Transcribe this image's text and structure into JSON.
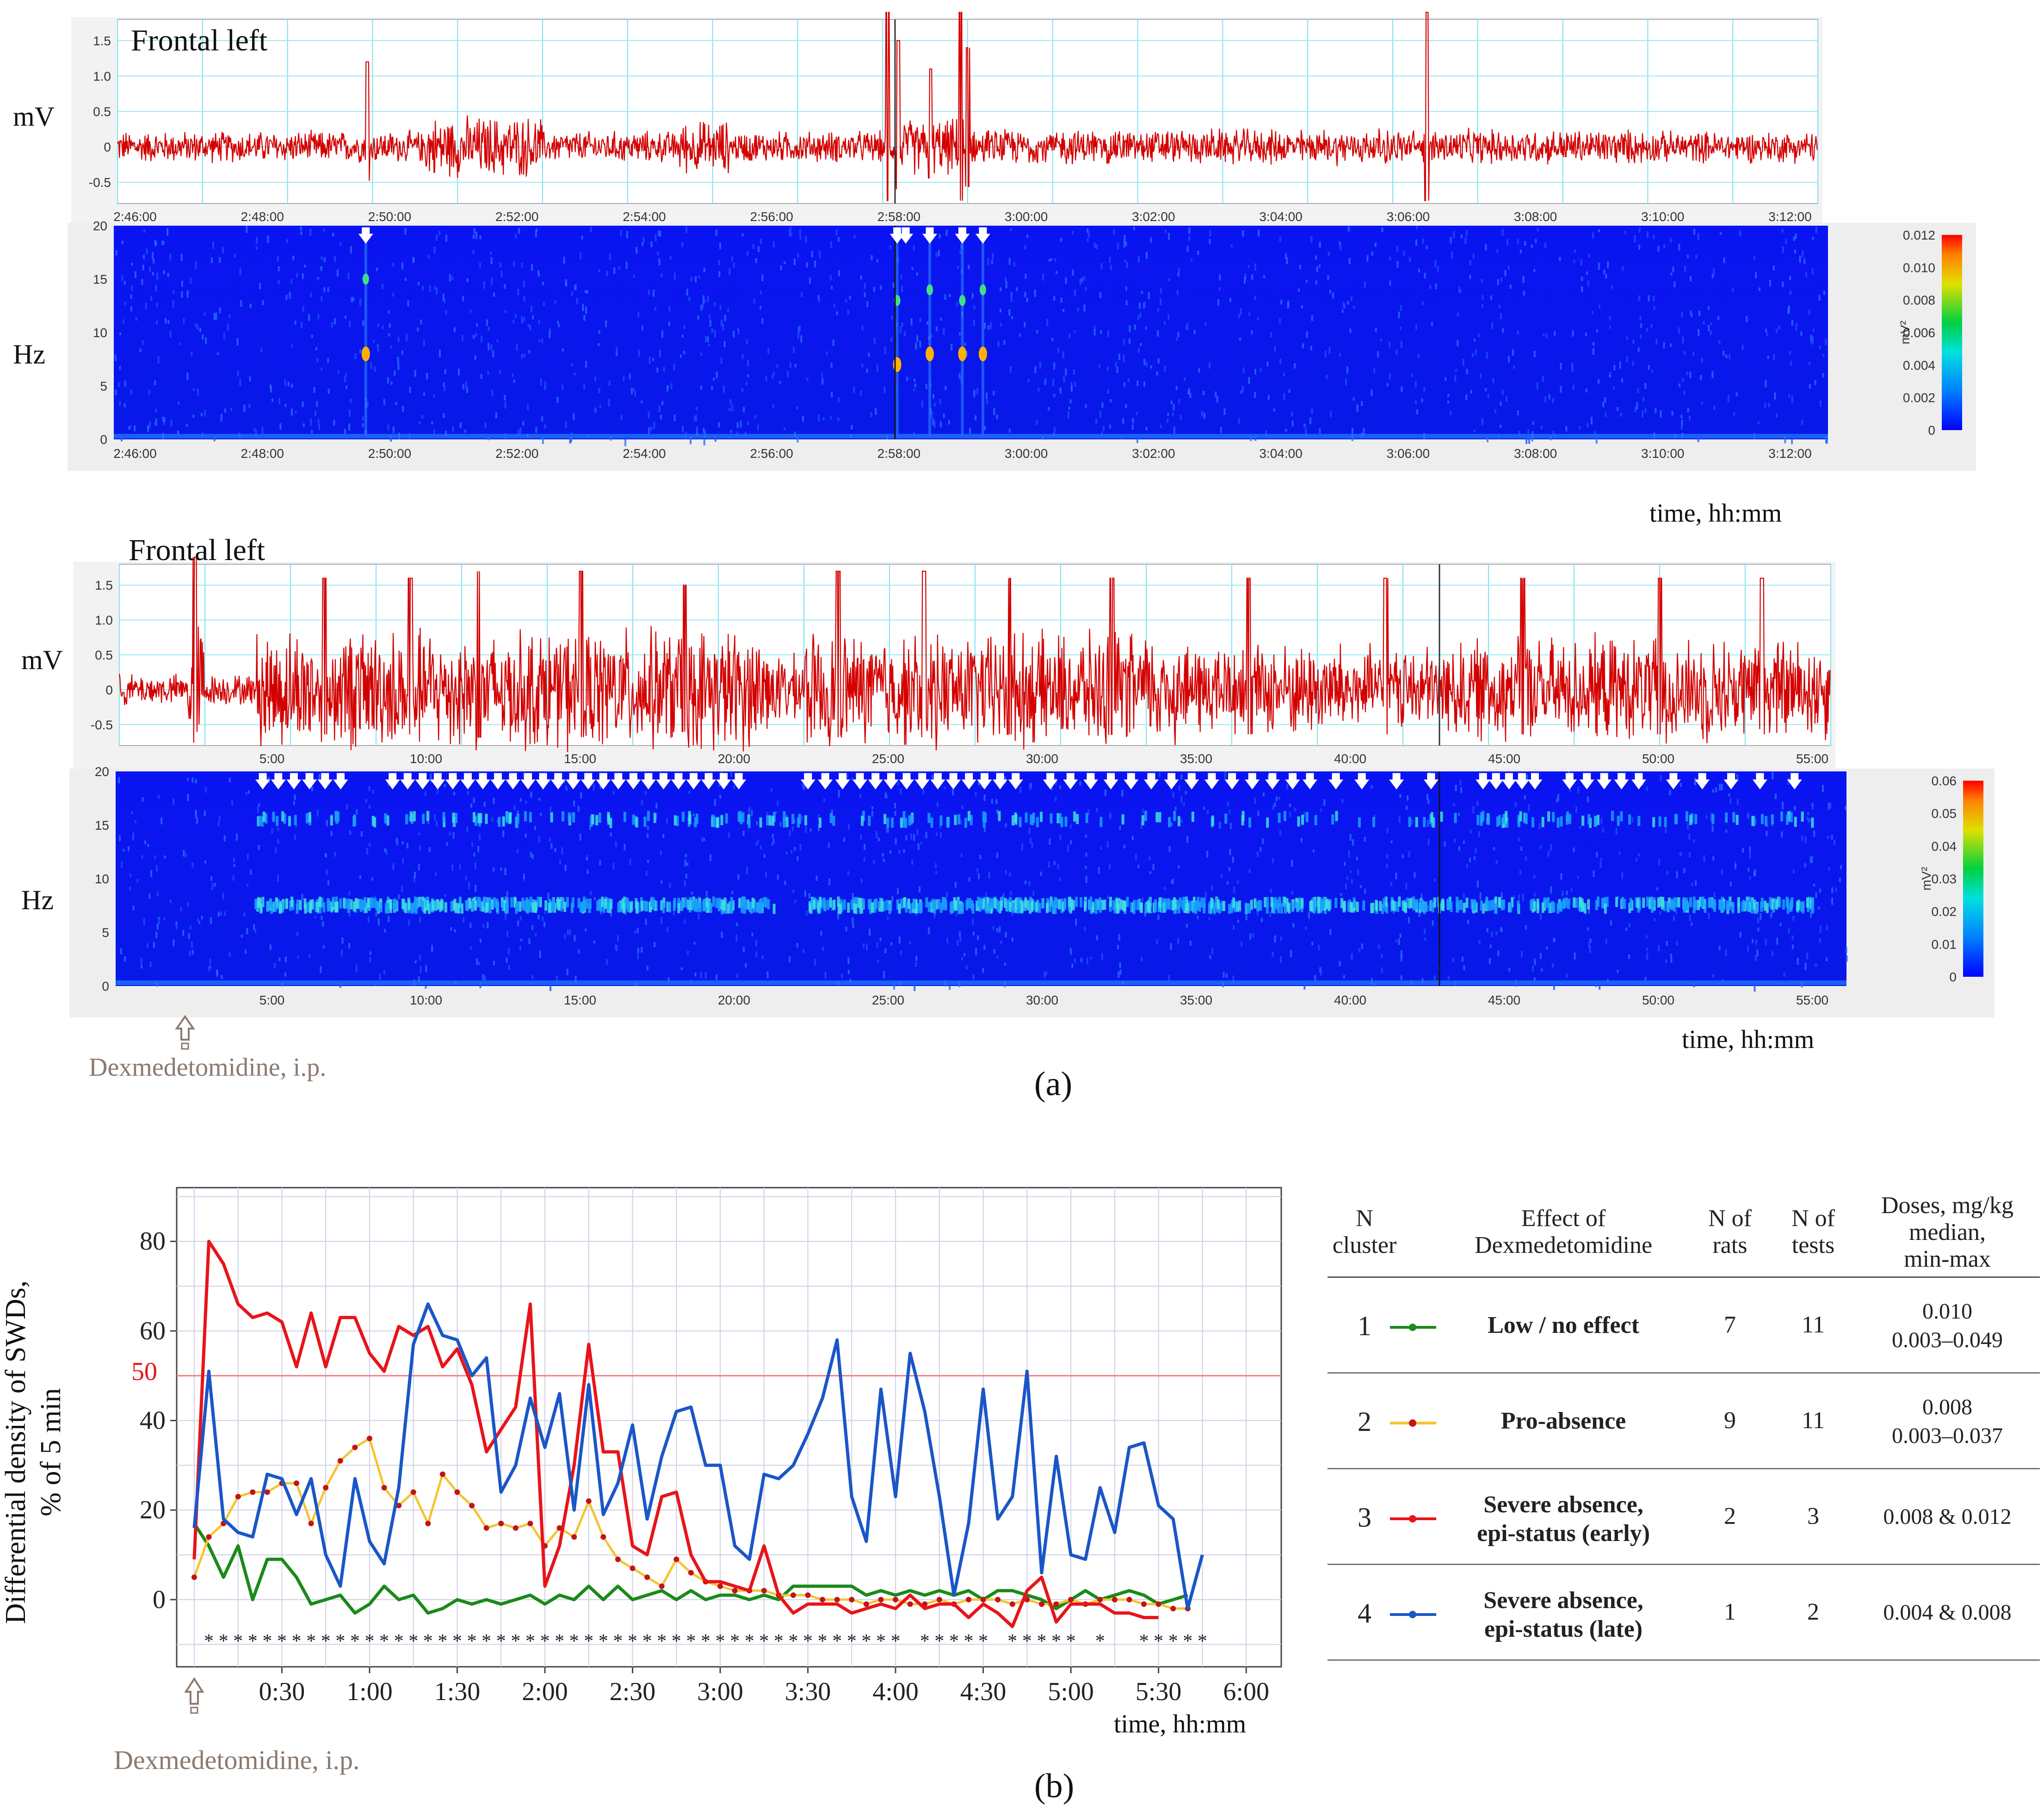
{
  "panel_a": {
    "label": "(a)",
    "top": {
      "trace_title": "Frontal left",
      "mv_label": "mV",
      "hz_label": "Hz",
      "mv_ticks": [
        "1.5",
        "1.0",
        "0.5",
        "0",
        "-0.5"
      ],
      "hz_ticks": [
        "20",
        "15",
        "10",
        "5",
        "0"
      ],
      "time_ticks": [
        "2:46:00",
        "2:48:00",
        "2:50:00",
        "2:52:00",
        "2:54:00",
        "2:56:00",
        "2:58:00",
        "3:00:00",
        "3:02:00",
        "3:04:00",
        "3:06:00",
        "3:08:00",
        "3:10:00",
        "3:12:00"
      ],
      "colorbar_ticks": [
        "0.012",
        "0.010",
        "0.008",
        "0.006",
        "0.004",
        "0.002",
        "0"
      ],
      "colorbar_unit": "mV²",
      "time_axis_label": "time, hh:mm"
    },
    "bottom": {
      "trace_title": "Frontal left",
      "mv_label": "mV",
      "hz_label": "Hz",
      "mv_ticks": [
        "1.5",
        "1.0",
        "0.5",
        "0",
        "-0.5"
      ],
      "hz_ticks": [
        "20",
        "15",
        "10",
        "5",
        "0"
      ],
      "time_ticks": [
        "5:00",
        "10:00",
        "15:00",
        "20:00",
        "25:00",
        "30:00",
        "35:00",
        "40:00",
        "45:00",
        "50:00",
        "55:00"
      ],
      "colorbar_ticks": [
        "0.06",
        "0.05",
        "0.04",
        "0.03",
        "0.02",
        "0.01",
        "0"
      ],
      "colorbar_unit": "mV²",
      "time_axis_label": "time, hh:mm",
      "injection_label": "Dexmedetomidine, i.p."
    }
  },
  "panel_b": {
    "label": "(b)",
    "injection_label": "Dexmedetomidine, i.p.",
    "ylabel_line1": "Differential density of SWDs,",
    "ylabel_line2": "% of 5 min",
    "xlabel": "time, hh:mm",
    "threshold_label": "50",
    "table": {
      "headers": [
        "N\ncluster",
        "Effect of\nDexmedetomidine",
        "N of\nrats",
        "N of\ntests",
        "Doses, mg/kg\nmedian,\nmin-max"
      ],
      "rows": [
        {
          "n": "1",
          "effect": "Low / no effect",
          "rats": "7",
          "tests": "11",
          "doses": "0.010\n0.003–0.049",
          "color": "#1a8a1a"
        },
        {
          "n": "2",
          "effect": "Pro-absence",
          "rats": "9",
          "tests": "11",
          "doses": "0.008\n0.003–0.037",
          "color": "#f4c430"
        },
        {
          "n": "3",
          "effect": "Severe absence,\nepi-status (early)",
          "rats": "2",
          "tests": "3",
          "doses": "0.008 & 0.012",
          "color": "#e8141a"
        },
        {
          "n": "4",
          "effect": "Severe absence,\nepi-status (late)",
          "rats": "1",
          "tests": "2",
          "doses": "0.004 & 0.008",
          "color": "#1a56c8"
        }
      ]
    }
  },
  "chart_data": [
    {
      "type": "line",
      "title": "Frontal left",
      "ylabel": "mV",
      "ylim": [
        -0.8,
        1.8
      ],
      "x_tick_labels": [
        "2:46:00",
        "2:48:00",
        "2:50:00",
        "2:52:00",
        "2:54:00",
        "2:56:00",
        "2:58:00",
        "3:00:00",
        "3:02:00",
        "3:04:00",
        "3:06:00",
        "3:08:00",
        "3:10:00",
        "3:12:00"
      ]
    },
    {
      "type": "heatmap",
      "ylabel": "Hz",
      "ylim": [
        0,
        20
      ],
      "colorbar_range": [
        0,
        0.013
      ],
      "marked_times": [
        "2:49:30",
        "2:58:05",
        "2:58:15",
        "2:58:35",
        "2:59:05",
        "2:59:25"
      ]
    },
    {
      "type": "line",
      "title": "Frontal left",
      "ylabel": "mV",
      "ylim": [
        -0.8,
        1.8
      ],
      "x_tick_labels": [
        "5:00",
        "10:00",
        "15:00",
        "20:00",
        "25:00",
        "30:00",
        "35:00",
        "40:00",
        "45:00",
        "50:00",
        "55:00"
      ]
    },
    {
      "type": "heatmap",
      "ylabel": "Hz",
      "ylim": [
        0,
        20
      ],
      "colorbar_range": [
        0,
        0.06
      ]
    },
    {
      "type": "line",
      "xlabel": "time, hh:mm",
      "ylabel": "Differential density of SWDs, % of 5 min",
      "x_unit": "hours",
      "x_tick_labels": [
        "0:30",
        "1:00",
        "1:30",
        "2:00",
        "2:30",
        "3:00",
        "3:30",
        "4:00",
        "4:30",
        "5:00",
        "5:30",
        "6:00"
      ],
      "x_ticks": [
        0.5,
        1,
        1.5,
        2,
        2.5,
        3,
        3.5,
        4,
        4.5,
        5,
        5.5,
        6
      ],
      "xlim": [
        -0.1,
        6.2
      ],
      "ylim": [
        -15,
        92
      ],
      "y_ticks": [
        0,
        20,
        40,
        60,
        80
      ],
      "reference_line": 50,
      "grid": true,
      "significance_marks": "* at most 5-min bins from 0:05 to 5:50",
      "series": [
        {
          "name": "Low / no effect",
          "color": "#1a8a1a",
          "values": [
            17,
            12,
            5,
            12,
            0,
            9,
            9,
            5,
            -1,
            0,
            1,
            -3,
            -1,
            3,
            0,
            1,
            -3,
            -2,
            0,
            -1,
            0,
            -1,
            0,
            1,
            -1,
            1,
            0,
            3,
            0,
            3,
            0,
            1,
            2,
            0,
            2,
            0,
            1,
            1,
            0,
            1,
            0,
            3,
            3,
            3,
            3,
            3,
            1,
            2,
            1,
            2,
            1,
            2,
            1,
            2,
            0,
            2,
            2,
            1,
            0,
            -2,
            0,
            2,
            0,
            1,
            2,
            1,
            -1,
            0,
            1
          ]
        },
        {
          "name": "Pro-absence",
          "color": "#f4c430",
          "values": [
            5,
            14,
            17,
            23,
            24,
            24,
            26,
            26,
            17,
            25,
            31,
            34,
            36,
            25,
            21,
            24,
            17,
            28,
            24,
            21,
            16,
            17,
            16,
            17,
            12,
            16,
            14,
            22,
            14,
            9,
            7,
            5,
            3,
            9,
            6,
            4,
            3,
            2,
            2,
            2,
            1,
            1,
            1,
            0,
            0,
            0,
            -1,
            0,
            0,
            -1,
            -1,
            0,
            -1,
            0,
            0,
            0,
            -1,
            0,
            -1,
            -1,
            0,
            -1,
            0,
            0,
            0,
            -1,
            -1,
            -2,
            -2
          ]
        },
        {
          "name": "Severe absence, epi-status (early)",
          "color": "#e8141a",
          "values": [
            9,
            80,
            75,
            66,
            63,
            64,
            62,
            52,
            64,
            52,
            63,
            63,
            55,
            51,
            61,
            59,
            61,
            52,
            56,
            48,
            33,
            38,
            43,
            66,
            3,
            12,
            30,
            57,
            33,
            33,
            12,
            10,
            23,
            24,
            10,
            4,
            4,
            3,
            2,
            12,
            1,
            -3,
            -1,
            -1,
            -1,
            -3,
            -2,
            -1,
            -2,
            1,
            -2,
            -1,
            -1,
            -4,
            -1,
            -3,
            -6,
            2,
            5,
            -5,
            -1,
            -1,
            -1,
            -3,
            -3,
            -4,
            -4
          ]
        },
        {
          "name": "Severe absence, epi-status (late)",
          "color": "#1a56c8",
          "values": [
            16,
            51,
            18,
            15,
            14,
            28,
            27,
            19,
            27,
            10,
            3,
            27,
            13,
            8,
            25,
            57,
            66,
            59,
            58,
            50,
            54,
            24,
            30,
            45,
            34,
            46,
            20,
            48,
            19,
            26,
            39,
            18,
            32,
            42,
            43,
            30,
            30,
            12,
            9,
            28,
            27,
            30,
            37,
            45,
            58,
            23,
            13,
            47,
            23,
            55,
            42,
            23,
            1,
            17,
            47,
            18,
            23,
            51,
            6,
            32,
            10,
            9,
            25,
            15,
            34,
            35,
            21,
            18,
            -2,
            10
          ]
        }
      ]
    }
  ]
}
